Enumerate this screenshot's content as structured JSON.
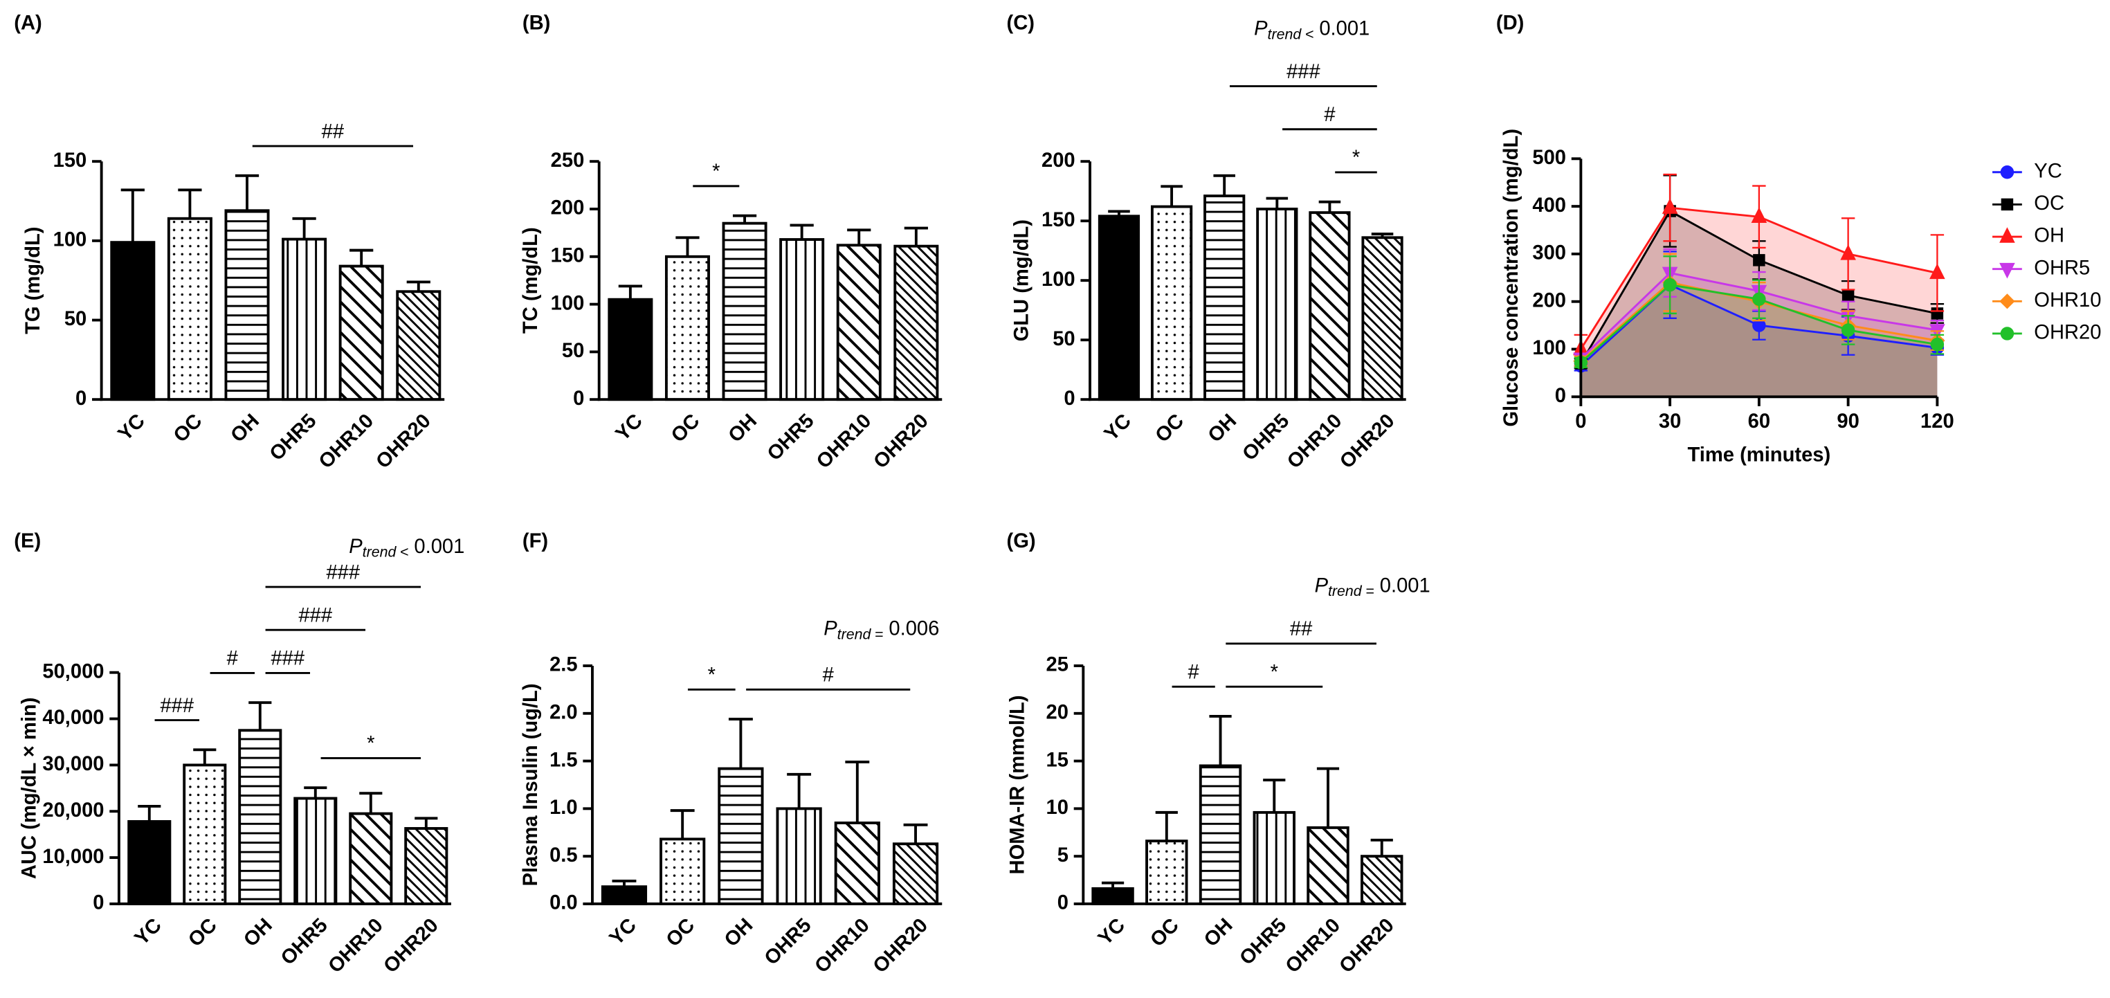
{
  "chart_data": [
    {
      "type": "bar",
      "label": "(A)",
      "ylabel": "TG (mg/dL)",
      "color": "#000000",
      "categories": [
        "YC",
        "OC",
        "OH",
        "OHR5",
        "OHR10",
        "OHR20"
      ],
      "values": [
        99,
        114,
        119,
        101,
        84,
        68
      ],
      "errors": [
        33,
        18,
        22,
        13,
        10,
        6
      ],
      "fill_patterns": [
        "solid",
        "dots",
        "horizontal",
        "vertical",
        "diagonal",
        "dense-diagonal"
      ],
      "ylim": [
        0,
        150
      ],
      "yticks": [
        0,
        50,
        100,
        150
      ],
      "significance": [
        {
          "label": "##",
          "from": "OH",
          "to": "OHR20"
        }
      ]
    },
    {
      "type": "bar",
      "label": "(B)",
      "ylabel": "TC (mg/dL)",
      "color": "#000000",
      "categories": [
        "YC",
        "OC",
        "OH",
        "OHR5",
        "OHR10",
        "OHR20"
      ],
      "values": [
        105,
        150,
        185,
        168,
        162,
        161
      ],
      "errors": [
        14,
        20,
        8,
        15,
        16,
        19
      ],
      "fill_patterns": [
        "solid",
        "dots",
        "horizontal",
        "vertical",
        "diagonal",
        "dense-diagonal"
      ],
      "ylim": [
        0,
        250
      ],
      "yticks": [
        0,
        50,
        100,
        150,
        200,
        250
      ],
      "significance": [
        {
          "label": "*",
          "from": "OC",
          "to": "OH"
        }
      ]
    },
    {
      "type": "bar",
      "label": "(C)",
      "ylabel": "GLU (mg/dL)",
      "color": "#000000",
      "categories": [
        "YC",
        "OC",
        "OH",
        "OHR5",
        "OHR10",
        "OHR20"
      ],
      "values": [
        154,
        162,
        171,
        160,
        157,
        136
      ],
      "errors": [
        4,
        17,
        17,
        9,
        9,
        3
      ],
      "fill_patterns": [
        "solid",
        "dots",
        "horizontal",
        "vertical",
        "diagonal",
        "dense-diagonal"
      ],
      "ylim": [
        0,
        200
      ],
      "yticks": [
        0,
        50,
        100,
        150,
        200
      ],
      "trend": {
        "symbol": "P",
        "subscript": "trend",
        "relation": "<",
        "value": 0.001
      },
      "significance": [
        {
          "label": "*",
          "from": "OHR10",
          "to": "OHR20"
        },
        {
          "label": "#",
          "from": "OHR5",
          "to": "OHR20"
        },
        {
          "label": "###",
          "from": "OH",
          "to": "OHR20"
        }
      ]
    },
    {
      "type": "line",
      "label": "(D)",
      "ylabel": "Glucose concentration (mg/dL)",
      "xlabel": "Time (minutes)",
      "x": [
        0,
        30,
        60,
        90,
        120
      ],
      "xlim": [
        0,
        120
      ],
      "xticks": [
        0,
        30,
        60,
        90,
        120
      ],
      "ylim": [
        0,
        500
      ],
      "yticks": [
        0,
        100,
        200,
        300,
        400,
        500
      ],
      "area_fill": true,
      "series": [
        {
          "name": "YC",
          "color": "#1f1fff",
          "marker": "circle",
          "values": [
            65,
            235,
            150,
            128,
            103
          ],
          "errors": [
            10,
            70,
            30,
            40,
            15
          ]
        },
        {
          "name": "OC",
          "color": "#000000",
          "marker": "square",
          "values": [
            70,
            390,
            287,
            213,
            175
          ],
          "errors": [
            10,
            75,
            40,
            30,
            20
          ]
        },
        {
          "name": "OH",
          "color": "#ff1a1a",
          "marker": "triangle",
          "values": [
            100,
            397,
            378,
            300,
            260
          ],
          "errors": [
            30,
            70,
            65,
            75,
            80
          ]
        },
        {
          "name": "OHR5",
          "color": "#c837e8",
          "marker": "triangle-down",
          "values": [
            80,
            260,
            222,
            170,
            140
          ],
          "errors": [
            10,
            50,
            40,
            30,
            20
          ]
        },
        {
          "name": "OHR10",
          "color": "#ff8c1a",
          "marker": "diamond",
          "values": [
            75,
            240,
            200,
            150,
            118
          ],
          "errors": [
            10,
            60,
            40,
            30,
            20
          ]
        },
        {
          "name": "OHR20",
          "color": "#22c02a",
          "marker": "circle",
          "values": [
            72,
            235,
            205,
            140,
            110
          ],
          "errors": [
            10,
            60,
            40,
            30,
            20
          ]
        }
      ]
    },
    {
      "type": "bar",
      "label": "(E)",
      "ylabel": "AUC (mg/dL × min)",
      "color": "#000000",
      "categories": [
        "YC",
        "OC",
        "OH",
        "OHR5",
        "OHR10",
        "OHR20"
      ],
      "values": [
        17800,
        30000,
        37500,
        22800,
        19500,
        16300
      ],
      "errors": [
        3300,
        3300,
        6000,
        2300,
        4400,
        2200
      ],
      "fill_patterns": [
        "solid",
        "dots",
        "horizontal",
        "vertical",
        "diagonal",
        "dense-diagonal"
      ],
      "ylim": [
        0,
        50000
      ],
      "yticks": [
        0,
        {
          "value": 10000,
          "label": "10,000"
        },
        {
          "value": 20000,
          "label": "20,000"
        },
        {
          "value": 30000,
          "label": "30,000"
        },
        {
          "value": 40000,
          "label": "40,000"
        },
        {
          "value": 50000,
          "label": "50,000"
        }
      ],
      "trend": {
        "symbol": "P",
        "subscript": "trend",
        "relation": "<",
        "value": 0.001
      },
      "significance": [
        {
          "label": "###",
          "from": "YC",
          "to": "OC"
        },
        {
          "label": "#",
          "from": "OC",
          "to": "OH"
        },
        {
          "label": "###",
          "from": "OH",
          "to": "OHR5"
        },
        {
          "label": "*",
          "from": "OHR5",
          "to": "OHR20"
        },
        {
          "label": "###",
          "from": "OH",
          "to": "OHR10"
        },
        {
          "label": "###",
          "from": "OH",
          "to": "OHR20"
        }
      ]
    },
    {
      "type": "bar",
      "label": "(F)",
      "ylabel": "Plasma Insulin (ug/L)",
      "color": "#000000",
      "categories": [
        "YC",
        "OC",
        "OH",
        "OHR5",
        "OHR10",
        "OHR20"
      ],
      "values": [
        0.18,
        0.68,
        1.42,
        1.0,
        0.85,
        0.63
      ],
      "errors": [
        0.06,
        0.3,
        0.52,
        0.36,
        0.64,
        0.2
      ],
      "fill_patterns": [
        "solid",
        "dots",
        "horizontal",
        "vertical",
        "diagonal",
        "dense-diagonal"
      ],
      "ylim": [
        0,
        2.5
      ],
      "yticks": [
        {
          "value": 0,
          "label": "0.0"
        },
        0.5,
        {
          "value": 1,
          "label": "1.0"
        },
        1.5,
        {
          "value": 2,
          "label": "2.0"
        },
        2.5
      ],
      "trend": {
        "symbol": "P",
        "subscript": "trend",
        "relation": "=",
        "value": 0.006
      },
      "significance": [
        {
          "label": "*",
          "from": "OC",
          "to": "OH"
        },
        {
          "label": "#",
          "from": "OH",
          "to": "OHR20"
        }
      ]
    },
    {
      "type": "bar",
      "label": "(G)",
      "ylabel": "HOMA-IR (mmol/L)",
      "color": "#000000",
      "categories": [
        "YC",
        "OC",
        "OH",
        "OHR5",
        "OHR10",
        "OHR20"
      ],
      "values": [
        1.6,
        6.6,
        14.5,
        9.6,
        8,
        5
      ],
      "errors": [
        0.6,
        3,
        5.2,
        3.4,
        6.2,
        1.7
      ],
      "fill_patterns": [
        "solid",
        "dots",
        "horizontal",
        "vertical",
        "diagonal",
        "dense-diagonal"
      ],
      "ylim": [
        0,
        25
      ],
      "yticks": [
        0,
        5,
        10,
        15,
        20,
        25
      ],
      "trend": {
        "symbol": "P",
        "subscript": "trend",
        "relation": "=",
        "value": 0.001
      },
      "significance": [
        {
          "label": "#",
          "from": "OC",
          "to": "OH"
        },
        {
          "label": "*",
          "from": "OH",
          "to": "OHR10"
        },
        {
          "label": "##",
          "from": "OH",
          "to": "OHR20"
        }
      ]
    }
  ]
}
